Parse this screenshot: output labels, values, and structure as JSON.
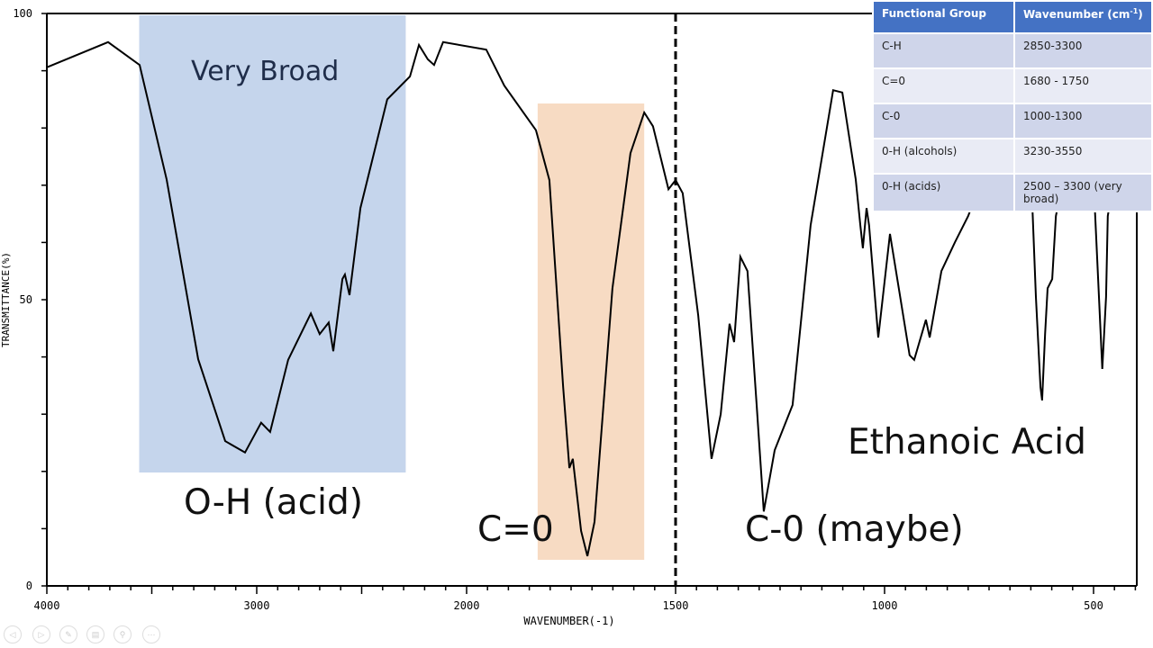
{
  "chart_data": {
    "type": "line",
    "title": "",
    "xlabel": "WAVENUMBER(-1)",
    "ylabel": "TRANSMITTANCE(%)",
    "xlim": [
      4000,
      400
    ],
    "ylim": [
      0,
      100
    ],
    "x_scale_break": 2000,
    "x_ticks": [
      4000,
      3000,
      2000,
      1500,
      1000,
      500
    ],
    "x_tick_labels": [
      "4000",
      "3000",
      "2000",
      "1500",
      "1000",
      "500"
    ],
    "y_ticks": [
      0,
      50,
      100
    ],
    "y_tick_labels": [
      "0",
      "50",
      "100"
    ],
    "series": [
      {
        "name": "Ethanoic Acid",
        "x": [
          4000,
          3708,
          3558,
          3429,
          3279,
          3150,
          3056,
          2979,
          2936,
          2850,
          2742,
          2700,
          2657,
          2635,
          2592,
          2580,
          2558,
          2506,
          2378,
          2270,
          2227,
          2185,
          2155,
          2112,
          1953,
          1910,
          1834,
          1802,
          1769,
          1754,
          1746,
          1726,
          1711,
          1694,
          1651,
          1608,
          1575,
          1554,
          1517,
          1500,
          1483,
          1446,
          1414,
          1392,
          1371,
          1360,
          1345,
          1328,
          1306,
          1289,
          1263,
          1220,
          1177,
          1123,
          1101,
          1069,
          1058,
          1052,
          1043,
          1037,
          1015,
          987,
          966,
          940,
          929,
          901,
          892,
          864,
          832,
          800,
          767,
          703,
          649,
          638,
          627,
          623,
          616,
          610,
          599,
          590,
          573,
          498,
          487,
          479,
          470,
          466,
          434,
          400
        ],
        "y": [
          90.6,
          95,
          91,
          71,
          39.6,
          25.3,
          23.3,
          28.5,
          26.9,
          39.5,
          47.6,
          44,
          46,
          41,
          53.6,
          54.4,
          50.8,
          66,
          85,
          89,
          94.5,
          92,
          91,
          95,
          93.7,
          87.4,
          79.6,
          70.9,
          34.7,
          20.6,
          22.2,
          9.6,
          5.2,
          11.2,
          52,
          75.6,
          82.7,
          80.3,
          69.3,
          70.9,
          68.6,
          47.3,
          22.2,
          30,
          45.8,
          42.6,
          57.5,
          55,
          31.6,
          13,
          23.7,
          31.6,
          63,
          86.6,
          86.2,
          71,
          63,
          59,
          66,
          63,
          43.4,
          61.5,
          52,
          40.3,
          39.5,
          46.5,
          43.4,
          55,
          60,
          64.6,
          71,
          82,
          71,
          50.5,
          34.7,
          32.4,
          44,
          52,
          53.6,
          64.6,
          71,
          67.8,
          50.5,
          37.9,
          50.5,
          64.6,
          79,
          82
        ]
      }
    ],
    "highlights": [
      {
        "label": "Very Broad",
        "sublabel": "O-H (acid)",
        "range": [
          3560,
          2290
        ],
        "color": "#c5d5ec"
      },
      {
        "label": "C=0",
        "range": [
          1830,
          1575
        ],
        "color": "#f7dbc3"
      }
    ],
    "reference_line": {
      "x": 1500,
      "style": "dashed"
    },
    "annotations": [
      "C-0 (maybe)",
      "Ethanoic Acid"
    ],
    "grid": false
  },
  "table": {
    "headers": [
      "Functional Group",
      "Wavenumber (cm",
      "-1",
      ")"
    ],
    "rows": [
      [
        "C-H",
        "2850-3300"
      ],
      [
        "C=0",
        "1680 - 1750"
      ],
      [
        "C-0",
        "1000-1300"
      ],
      [
        "0-H (alcohols)",
        "3230-3550"
      ],
      [
        "0-H (acids)",
        "2500 – 3300 (very broad)"
      ]
    ]
  },
  "colors": {
    "header": "#4472c4",
    "row_odd": "#cfd5ea",
    "row_even": "#e9ebf5"
  }
}
